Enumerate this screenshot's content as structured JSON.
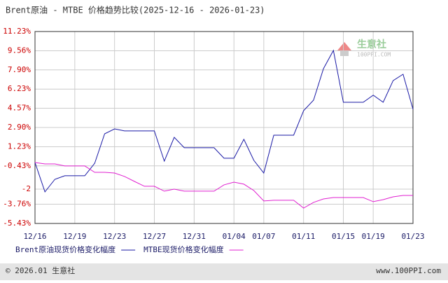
{
  "chart_data": {
    "type": "line",
    "title": "Brent原油 - MTBE 价格趋势比较(2025-12-16 - 2026-01-23)",
    "categories": [
      "12/16",
      null,
      null,
      null,
      "12/19",
      null,
      null,
      null,
      "12/23",
      null,
      null,
      null,
      "12/27",
      null,
      null,
      null,
      "12/31",
      null,
      null,
      null,
      "01/04",
      null,
      null,
      "01/07",
      null,
      null,
      null,
      "01/11",
      null,
      null,
      null,
      "01/15",
      null,
      null,
      "01/19",
      null,
      null,
      null,
      "01/23"
    ],
    "series": [
      {
        "name": "Brent原油现货价格变化幅度",
        "color": "#1a1aa6",
        "values": [
          -0.14,
          -2.69,
          -1.6,
          -1.29,
          -1.29,
          -1.29,
          -0.2,
          2.35,
          2.78,
          2.6,
          2.6,
          2.6,
          2.6,
          -0.02,
          2.05,
          1.14,
          1.14,
          1.14,
          1.14,
          0.23,
          0.23,
          1.87,
          0.05,
          -1.05,
          2.23,
          2.23,
          2.23,
          4.36,
          5.27,
          8.01,
          9.59,
          5.09,
          5.09,
          5.09,
          5.7,
          5.09,
          6.97,
          7.52,
          4.48
        ]
      },
      {
        "name": "MTBE现货价格变化幅度",
        "color": "#e020d0",
        "values": [
          -0.14,
          -0.26,
          -0.26,
          -0.44,
          -0.44,
          -0.44,
          -0.99,
          -0.99,
          -1.05,
          -1.35,
          -1.78,
          -2.2,
          -2.2,
          -2.63,
          -2.45,
          -2.63,
          -2.63,
          -2.63,
          -2.63,
          -2.08,
          -1.84,
          -2.02,
          -2.57,
          -3.48,
          -3.42,
          -3.42,
          -3.42,
          -4.09,
          -3.6,
          -3.3,
          -3.18,
          -3.18,
          -3.18,
          -3.18,
          -3.54,
          -3.36,
          -3.12,
          -3.0,
          -3.0
        ]
      }
    ],
    "ylim": [
      -5.43,
      11.23
    ],
    "yticks": [
      {
        "value": 11.23,
        "label": "11.23%"
      },
      {
        "value": 9.56,
        "label": "9.56%"
      },
      {
        "value": 7.9,
        "label": "7.90%"
      },
      {
        "value": 6.23,
        "label": "6.23%"
      },
      {
        "value": 4.57,
        "label": "4.57%"
      },
      {
        "value": 2.9,
        "label": "2.90%"
      },
      {
        "value": 1.23,
        "label": "1.23%"
      },
      {
        "value": -0.43,
        "label": "-0.43%"
      },
      {
        "value": -2.45,
        "label": "-2"
      },
      {
        "value": -3.76,
        "label": "-3.76%"
      },
      {
        "value": -5.43,
        "label": "-5.43%"
      }
    ],
    "grid": true
  },
  "watermark": {
    "name": "生意社",
    "site": "100PPI.COM"
  },
  "footer": {
    "copyright": "© 2026.01 生意社",
    "site": "www.100PPI.com"
  }
}
